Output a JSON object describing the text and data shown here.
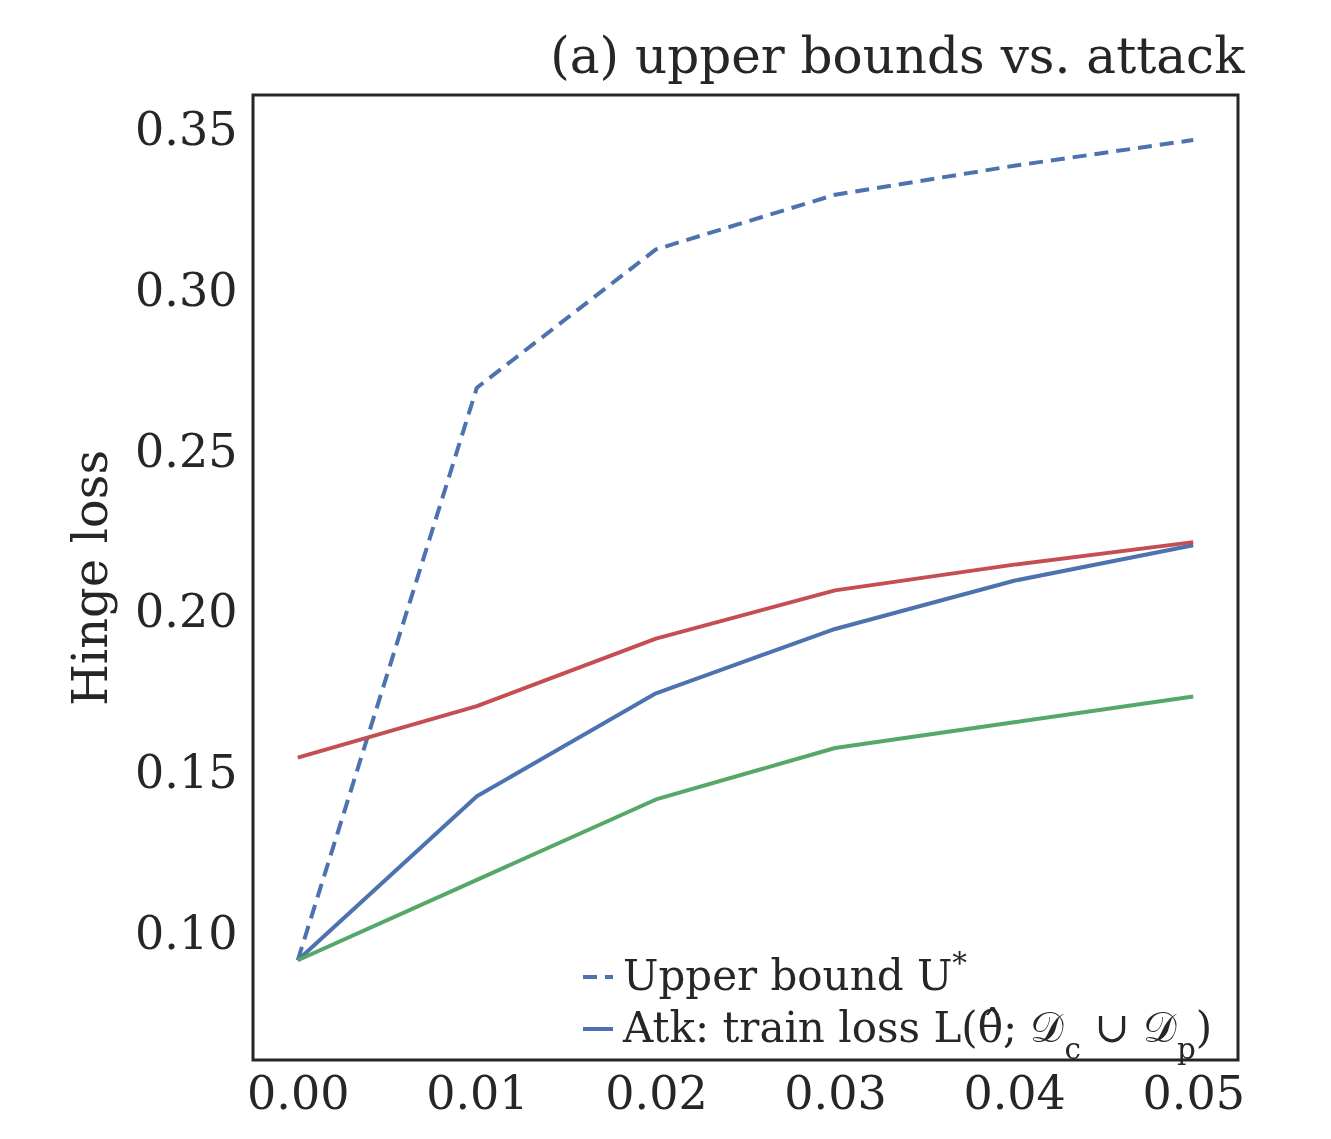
{
  "chart_data": {
    "type": "line",
    "title": "(a) upper bounds vs. attack",
    "ylabel": "Hinge loss",
    "x": [
      0,
      0.01,
      0.02,
      0.03,
      0.04,
      0.05
    ],
    "series": [
      {
        "name": "Upper bound U$^{*}$",
        "color": "#4c72b0",
        "line_style": "dashed",
        "values": [
          0.092,
          0.27,
          0.313,
          0.33,
          0.339,
          0.347
        ]
      },
      {
        "name": "Atk: train loss L(θ̂; 𝒟$_{c}$ ∪ 𝒟$_{p}$)",
        "color": "#4c72b0",
        "line_style": "solid",
        "values": [
          0.092,
          0.143,
          0.175,
          0.195,
          0.21,
          0.221
        ]
      },
      {
        "color": "#c44e52",
        "line_style": "solid",
        "values": [
          0.155,
          0.171,
          0.192,
          0.207,
          0.215,
          0.222
        ]
      },
      {
        "color": "#55a868",
        "line_style": "solid",
        "values": [
          0.092,
          0.117,
          0.142,
          0.158,
          0.166,
          0.174
        ]
      }
    ],
    "xlim": [
      -0.0025,
      0.0525
    ],
    "xticks": [
      {
        "value": 0,
        "label": "0.00"
      },
      {
        "value": 0.01,
        "label": "0.01"
      },
      {
        "value": 0.02,
        "label": "0.02"
      },
      {
        "value": 0.03,
        "label": "0.03"
      },
      {
        "value": 0.04,
        "label": "0.04"
      },
      {
        "value": 0.05,
        "label": "0.05"
      }
    ],
    "ylim": [
      0.061,
      0.361
    ],
    "yticks": [
      {
        "value": 0.1,
        "label": "0.10"
      },
      {
        "value": 0.15,
        "label": "0.15"
      },
      {
        "value": 0.2,
        "label": "0.20"
      },
      {
        "value": 0.25,
        "label": "0.25"
      },
      {
        "value": 0.3,
        "label": "0.30"
      },
      {
        "value": 0.35,
        "label": "0.35"
      }
    ],
    "grid": false,
    "legend": "bottom right"
  }
}
